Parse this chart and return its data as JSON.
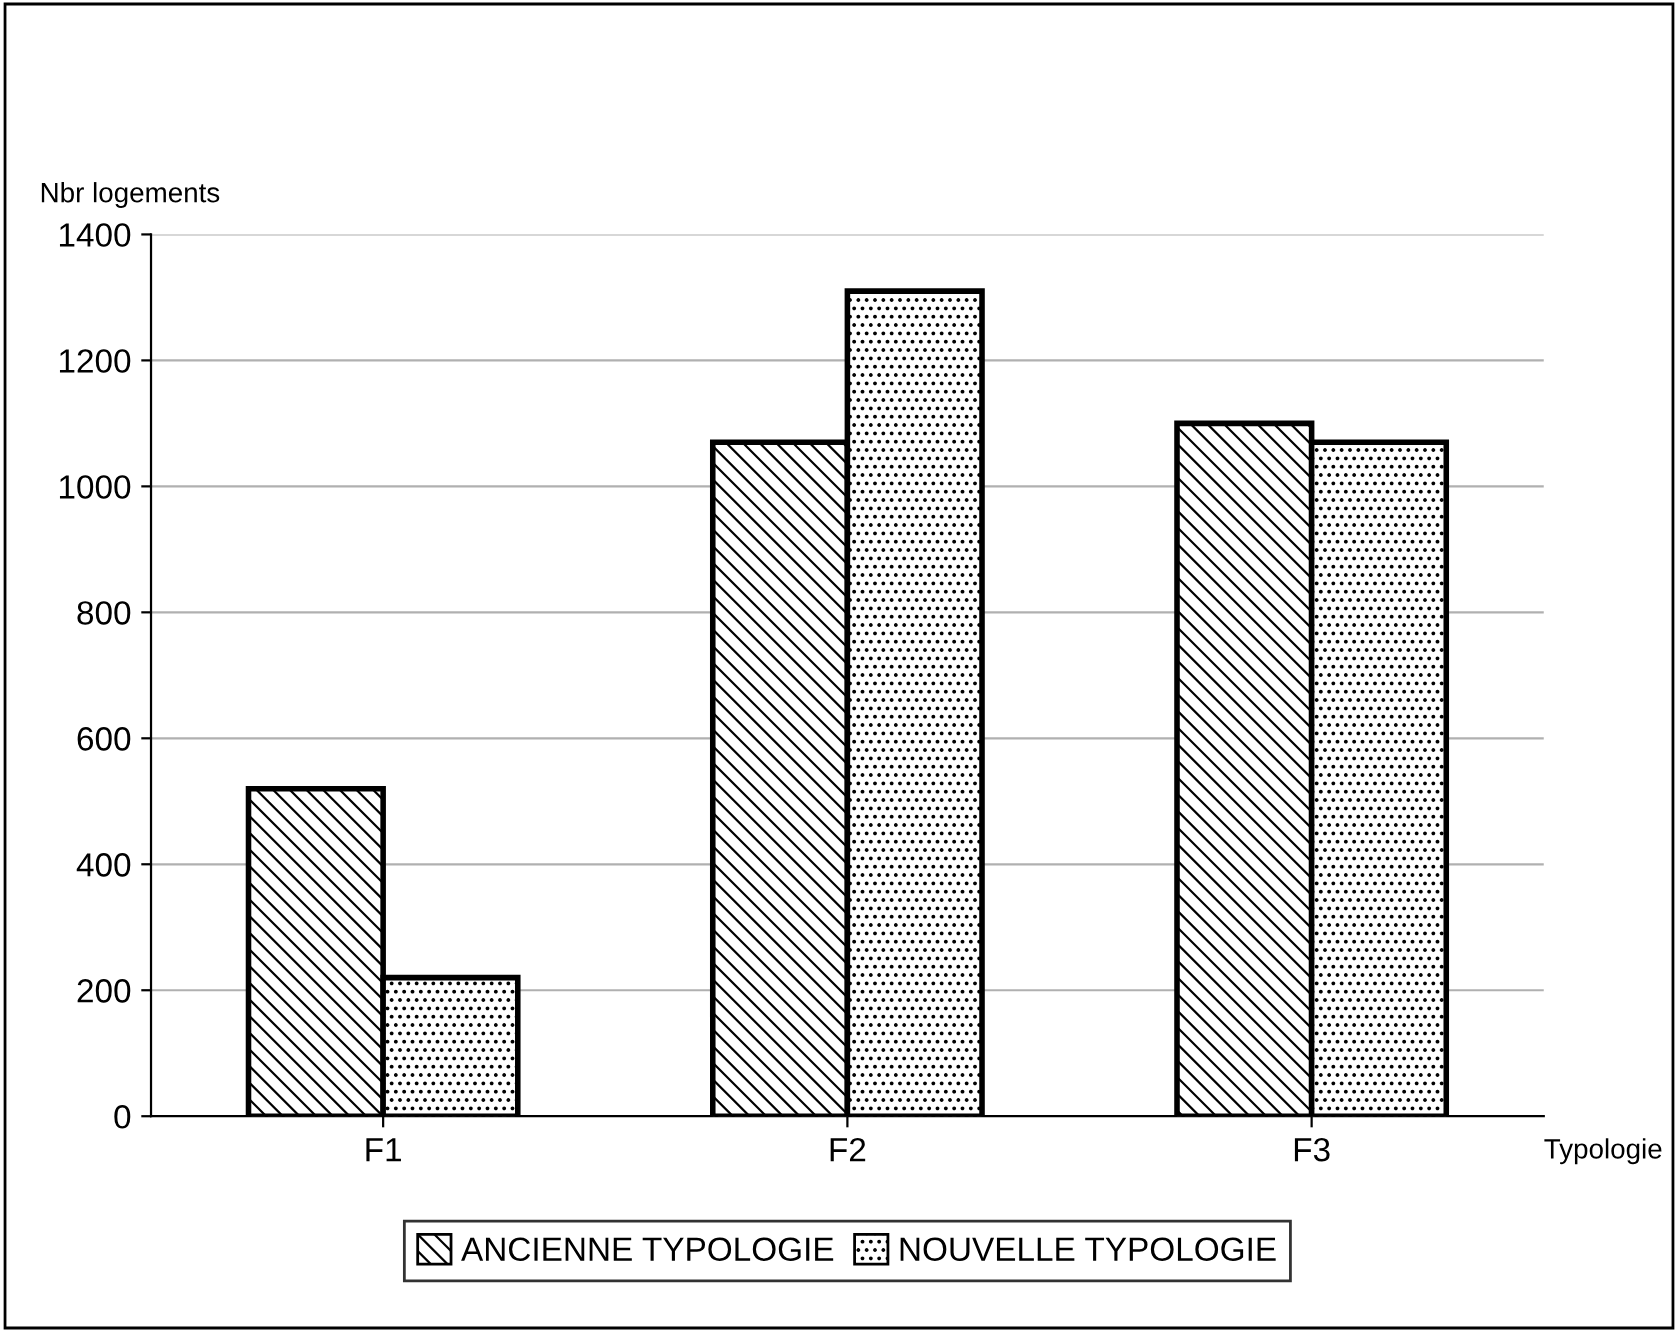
{
  "chart_data": {
    "type": "bar",
    "xlabel": "Typologie",
    "ylabel": "Nbr logements",
    "categories": [
      "F1",
      "F2",
      "F3"
    ],
    "series": [
      {
        "name": "ANCIENNE TYPOLOGIE",
        "color": "#000000",
        "values": [
          520,
          1070,
          1100
        ]
      },
      {
        "name": "NOUVELLE TYPOLOGIE",
        "color": "#000000",
        "values": [
          220,
          1310,
          1070
        ]
      }
    ],
    "ylim": [
      0,
      1400
    ],
    "yticks": [
      0,
      200,
      400,
      600,
      800,
      1000,
      1200,
      1400
    ],
    "grid": "y",
    "legend": "bottom"
  }
}
